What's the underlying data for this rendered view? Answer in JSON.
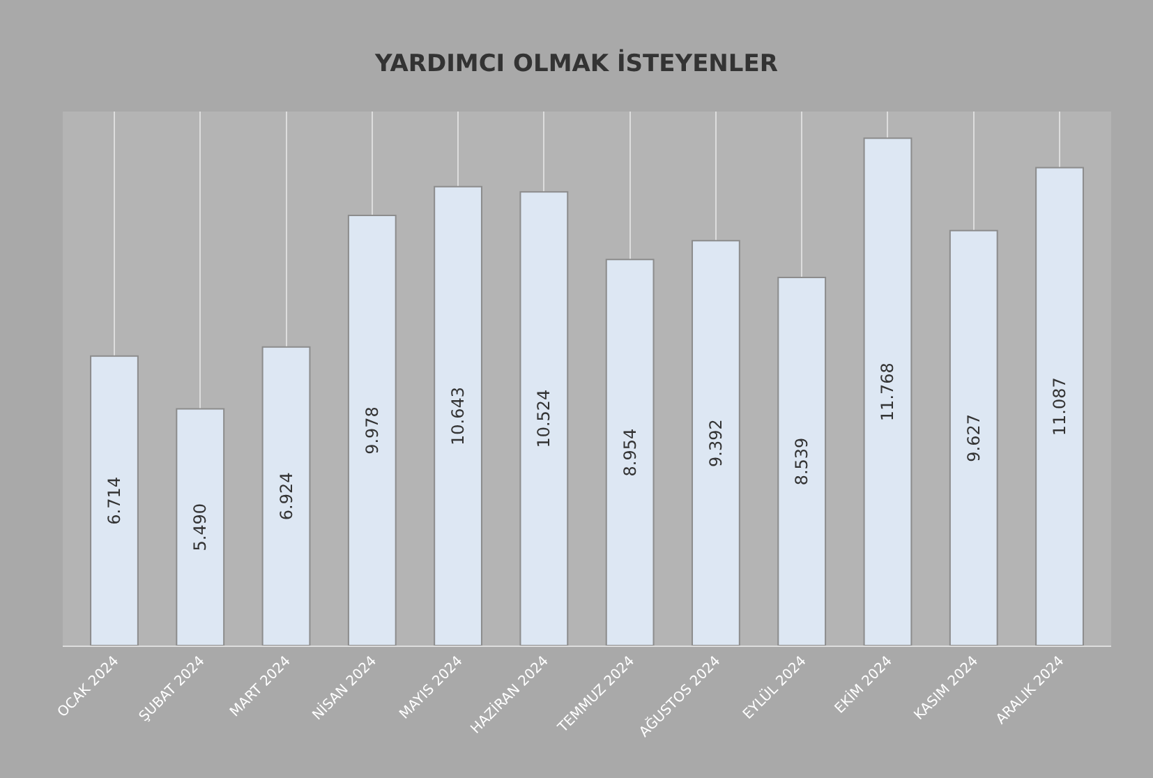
{
  "chart_data": {
    "type": "bar",
    "title": "YARDIMCI OLMAK İSTEYENLER",
    "categories": [
      "OCAK 2024",
      "ŞUBAT 2024",
      "MART 2024",
      "NİSAN 2024",
      "MAYIS 2024",
      "HAZİRAN 2024",
      "TEMMUZ 2024",
      "AĞUSTOS 2024",
      "EYLÜL 2024",
      "EKİM 2024",
      "KASIM 2024",
      "ARALIK 2024"
    ],
    "values": [
      6714,
      5490,
      6924,
      9978,
      10643,
      10524,
      8954,
      9392,
      8539,
      11768,
      9627,
      11087
    ],
    "value_labels": [
      "6.714",
      "5.490",
      "6.924",
      "9.978",
      "10.643",
      "10.524",
      "8.954",
      "9.392",
      "8.539",
      "11.768",
      "9.627",
      "11.087"
    ],
    "color": "#dde7f3",
    "grid": "x",
    "tick_labels": "x"
  }
}
